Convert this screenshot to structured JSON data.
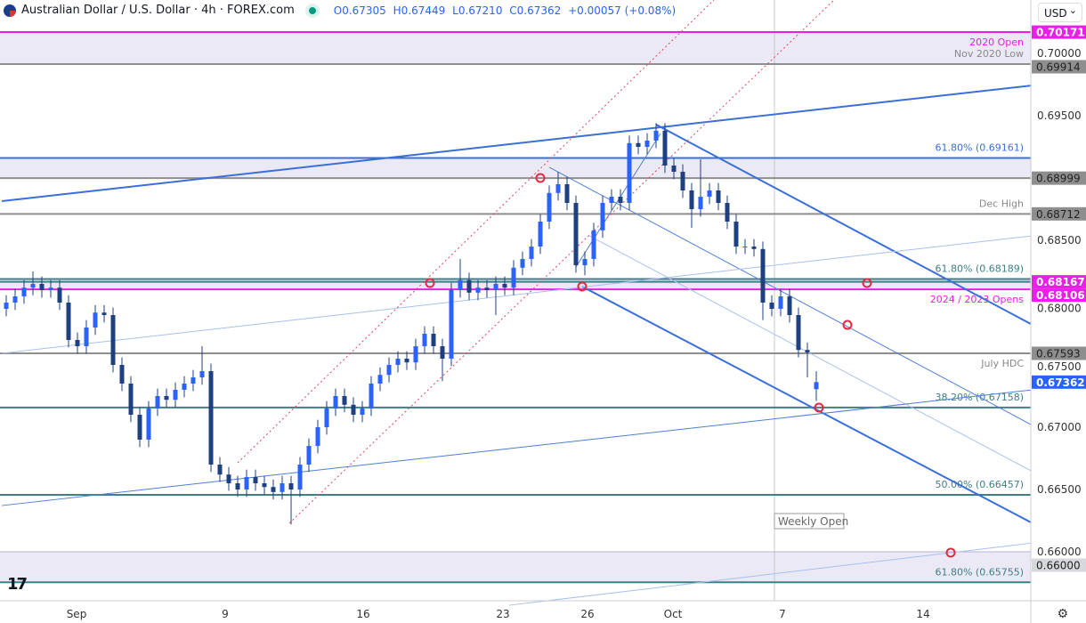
{
  "header": {
    "symbol": "Australian Dollar / U.S. Dollar · 4h · FOREX.com",
    "open": "O0.67305",
    "high": "H0.67449",
    "low": "L0.67210",
    "close": "C0.67362",
    "change": "+0.00057 (+0.08%)"
  },
  "currency_selector": "USD",
  "logo_text": "TV",
  "colors": {
    "up": "#2962ff",
    "down": "#1e3f80",
    "magenta": "#e91ee9",
    "gray": "#8e8e8e",
    "blue": "#3a6fd8",
    "teal": "#3f7f86",
    "band": "#ebe9f6",
    "last": "#2962ff"
  },
  "chart_data": {
    "type": "candlestick",
    "timeframe": "4h",
    "ylim": [
      0.6574,
      0.7039
    ],
    "y_ticks": [
      "0.70000",
      "0.69500",
      "0.68500",
      "0.68000",
      "0.67500",
      "0.67000",
      "0.66500",
      "0.66000"
    ],
    "x_ticks": [
      {
        "label": "Sep",
        "bar": 8.4
      },
      {
        "label": "9",
        "bar": 25.1
      },
      {
        "label": "16",
        "bar": 40.6
      },
      {
        "label": "23",
        "bar": 56.3
      },
      {
        "label": "26",
        "bar": 65.8
      },
      {
        "label": "Oct",
        "bar": 75.4
      },
      {
        "label": "7",
        "bar": 87.7
      },
      {
        "label": "14",
        "bar": 103.5
      }
    ],
    "ohlc": [
      [
        0.6795,
        0.6806,
        0.6789,
        0.68
      ],
      [
        0.68,
        0.6811,
        0.6794,
        0.6805
      ],
      [
        0.6805,
        0.6818,
        0.6799,
        0.6812
      ],
      [
        0.6812,
        0.6825,
        0.6806,
        0.6815
      ],
      [
        0.6815,
        0.6821,
        0.6804,
        0.681
      ],
      [
        0.681,
        0.6818,
        0.6804,
        0.6812
      ],
      [
        0.6812,
        0.6818,
        0.6794,
        0.68
      ],
      [
        0.68,
        0.6806,
        0.6764,
        0.677
      ],
      [
        0.677,
        0.6776,
        0.6759,
        0.6765
      ],
      [
        0.6765,
        0.6786,
        0.6759,
        0.678
      ],
      [
        0.678,
        0.6798,
        0.6774,
        0.6792
      ],
      [
        0.6792,
        0.6798,
        0.6784,
        0.679
      ],
      [
        0.679,
        0.6796,
        0.6744,
        0.675
      ],
      [
        0.675,
        0.6756,
        0.6729,
        0.6735
      ],
      [
        0.6735,
        0.6741,
        0.6704,
        0.671
      ],
      [
        0.671,
        0.6716,
        0.6684,
        0.669
      ],
      [
        0.669,
        0.6721,
        0.6684,
        0.6715
      ],
      [
        0.6715,
        0.6731,
        0.6709,
        0.6725
      ],
      [
        0.6725,
        0.6731,
        0.6716,
        0.6722
      ],
      [
        0.6722,
        0.6736,
        0.6716,
        0.673
      ],
      [
        0.673,
        0.6741,
        0.6724,
        0.6735
      ],
      [
        0.6735,
        0.6746,
        0.6729,
        0.674
      ],
      [
        0.674,
        0.6765,
        0.6734,
        0.6745
      ],
      [
        0.6745,
        0.6751,
        0.6664,
        0.667
      ],
      [
        0.667,
        0.6676,
        0.6656,
        0.6662
      ],
      [
        0.6662,
        0.6668,
        0.6649,
        0.6655
      ],
      [
        0.6655,
        0.6661,
        0.6644,
        0.665
      ],
      [
        0.665,
        0.6666,
        0.6644,
        0.666
      ],
      [
        0.666,
        0.6666,
        0.6649,
        0.6655
      ],
      [
        0.6655,
        0.6661,
        0.6646,
        0.6652
      ],
      [
        0.6652,
        0.6658,
        0.6642,
        0.6648
      ],
      [
        0.6648,
        0.6661,
        0.6642,
        0.6655
      ],
      [
        0.6655,
        0.6661,
        0.6622,
        0.665
      ],
      [
        0.665,
        0.6676,
        0.6644,
        0.667
      ],
      [
        0.667,
        0.6691,
        0.6664,
        0.6685
      ],
      [
        0.6685,
        0.6706,
        0.6679,
        0.67
      ],
      [
        0.67,
        0.6721,
        0.6694,
        0.6715
      ],
      [
        0.6715,
        0.6731,
        0.6709,
        0.6725
      ],
      [
        0.6725,
        0.6731,
        0.6712,
        0.6718
      ],
      [
        0.6718,
        0.6724,
        0.6704,
        0.671
      ],
      [
        0.671,
        0.6721,
        0.6704,
        0.6715
      ],
      [
        0.6715,
        0.6741,
        0.6709,
        0.6735
      ],
      [
        0.6735,
        0.6748,
        0.6729,
        0.6742
      ],
      [
        0.6742,
        0.6756,
        0.6736,
        0.675
      ],
      [
        0.675,
        0.6761,
        0.6744,
        0.6755
      ],
      [
        0.6755,
        0.6761,
        0.6746,
        0.6752
      ],
      [
        0.6752,
        0.6771,
        0.6746,
        0.6765
      ],
      [
        0.6765,
        0.6781,
        0.6759,
        0.6775
      ],
      [
        0.6775,
        0.6781,
        0.6759,
        0.6765
      ],
      [
        0.6765,
        0.6771,
        0.6737,
        0.6755
      ],
      [
        0.6755,
        0.6816,
        0.6749,
        0.681
      ],
      [
        0.681,
        0.6835,
        0.6804,
        0.6818
      ],
      [
        0.6818,
        0.6824,
        0.6802,
        0.6808
      ],
      [
        0.6808,
        0.6818,
        0.6802,
        0.6812
      ],
      [
        0.6812,
        0.6818,
        0.6804,
        0.681
      ],
      [
        0.681,
        0.6821,
        0.679,
        0.6815
      ],
      [
        0.6815,
        0.6821,
        0.6806,
        0.6812
      ],
      [
        0.6812,
        0.6834,
        0.6806,
        0.6828
      ],
      [
        0.6828,
        0.6841,
        0.6822,
        0.6835
      ],
      [
        0.6835,
        0.6851,
        0.6829,
        0.6845
      ],
      [
        0.6845,
        0.6871,
        0.6839,
        0.6865
      ],
      [
        0.6865,
        0.6894,
        0.6859,
        0.6888
      ],
      [
        0.6888,
        0.6905,
        0.6882,
        0.6895
      ],
      [
        0.6895,
        0.6901,
        0.6874,
        0.688
      ],
      [
        0.688,
        0.6886,
        0.6824,
        0.683
      ],
      [
        0.683,
        0.6841,
        0.6822,
        0.6835
      ],
      [
        0.6835,
        0.6864,
        0.6829,
        0.6858
      ],
      [
        0.6858,
        0.6886,
        0.6852,
        0.688
      ],
      [
        0.688,
        0.6891,
        0.6874,
        0.6885
      ],
      [
        0.6885,
        0.6891,
        0.6874,
        0.688
      ],
      [
        0.688,
        0.6934,
        0.6874,
        0.6928
      ],
      [
        0.6928,
        0.6934,
        0.6919,
        0.6925
      ],
      [
        0.6925,
        0.6936,
        0.6919,
        0.693
      ],
      [
        0.693,
        0.6944,
        0.6924,
        0.6938
      ],
      [
        0.6938,
        0.6944,
        0.6904,
        0.691
      ],
      [
        0.691,
        0.6916,
        0.6899,
        0.6905
      ],
      [
        0.6905,
        0.6911,
        0.6884,
        0.689
      ],
      [
        0.689,
        0.6896,
        0.686,
        0.6875
      ],
      [
        0.6875,
        0.6915,
        0.6869,
        0.6885
      ],
      [
        0.6885,
        0.6896,
        0.6879,
        0.689
      ],
      [
        0.689,
        0.6896,
        0.6874,
        0.688
      ],
      [
        0.688,
        0.6886,
        0.6859,
        0.6865
      ],
      [
        0.6865,
        0.6871,
        0.6839,
        0.6845
      ],
      [
        0.6845,
        0.6851,
        0.6839,
        0.6845
      ],
      [
        0.6845,
        0.6851,
        0.6837,
        0.6843
      ],
      [
        0.6843,
        0.6849,
        0.6786,
        0.68
      ],
      [
        0.68,
        0.6806,
        0.6789,
        0.6795
      ],
      [
        0.6795,
        0.6811,
        0.6789,
        0.6805
      ],
      [
        0.6805,
        0.6811,
        0.6784,
        0.679
      ],
      [
        0.679,
        0.6796,
        0.6756,
        0.6762
      ],
      [
        0.6762,
        0.6768,
        0.674,
        0.676
      ],
      [
        0.67305,
        0.67449,
        0.6721,
        0.67362
      ]
    ],
    "bands": [
      {
        "from": 0.69914,
        "to": 0.70171
      },
      {
        "from": 0.68999,
        "to": 0.69161
      },
      {
        "from": 0.68106,
        "to": 0.68189
      },
      {
        "from": 0.65755,
        "to": 0.66
      }
    ],
    "levels": [
      {
        "price": 0.70171,
        "color": "magenta",
        "label": "2020 Open",
        "tag": "0.70171",
        "tagColor": "#e91ee9"
      },
      {
        "price": 0.69914,
        "color": "gray",
        "label": "Nov 2020 Low",
        "tag": "0.69914",
        "tagColor": "#8e8e8e"
      },
      {
        "price": 0.69161,
        "color": "blue",
        "label": "61.80% (0.69161)",
        "tag": ""
      },
      {
        "price": 0.68999,
        "color": "gray",
        "label": "",
        "tag": "0.68999",
        "tagColor": "#8e8e8e"
      },
      {
        "price": 0.68712,
        "color": "gray",
        "label": "Dec High",
        "tag": "0.68712",
        "tagColor": "#8e8e8e"
      },
      {
        "price": 0.68189,
        "color": "teal",
        "label": "61.80% (0.68189)",
        "tag": ""
      },
      {
        "price": 0.68167,
        "color": "teal",
        "label": "",
        "tag": "0.68167",
        "tagColor": "#e91ee9"
      },
      {
        "price": 0.68106,
        "color": "magenta",
        "label": "2024 / 2023 Opens",
        "tag": "0.68106",
        "tagColor": "#e91ee9"
      },
      {
        "price": 0.67593,
        "color": "gray",
        "label": "July HDC",
        "tag": "0.67593",
        "tagColor": "#8e8e8e"
      },
      {
        "price": 0.67158,
        "color": "teal",
        "label": "38.20% (0.67158)",
        "tag": ""
      },
      {
        "price": 0.66457,
        "color": "teal",
        "label": "50.00% (0.66457)",
        "tag": ""
      },
      {
        "price": 0.66,
        "color": "band",
        "label": "",
        "tag": "0.66000",
        "tagColor": "#d6d8dc"
      },
      {
        "price": 0.65755,
        "color": "teal",
        "label": "61.80% (0.65755)",
        "tag": ""
      }
    ],
    "last_price": "0.67362",
    "trendlines": [
      {
        "from": [
          0,
          0.68814
        ],
        "to": [
          115.8,
          0.69743
        ],
        "style": "blue-thick"
      },
      {
        "from": [
          73.5,
          0.69429
        ],
        "to": [
          115.8,
          0.67821
        ],
        "style": "blue-thick"
      },
      {
        "from": [
          65.2,
          0.68129
        ],
        "to": [
          115.8,
          0.66229
        ],
        "style": "blue-thick"
      },
      {
        "from": [
          61.5,
          0.69086
        ],
        "to": [
          115.8,
          0.67014
        ],
        "style": "blue-thin"
      },
      {
        "from": [
          66,
          0.68536
        ],
        "to": [
          115.8,
          0.66643
        ],
        "style": "blue-light"
      },
      {
        "from": [
          0,
          0.67593
        ],
        "to": [
          115.8,
          0.68536
        ],
        "style": "blue-light"
      },
      {
        "from": [
          0,
          0.66371
        ],
        "to": [
          115.8,
          0.673
        ],
        "style": "blue-thin"
      },
      {
        "from": [
          57,
          0.65571
        ],
        "to": [
          115.8,
          0.66071
        ],
        "style": "blue-light"
      },
      {
        "from": [
          64.5,
          0.68286
        ],
        "to": [
          74,
          0.69357
        ],
        "style": "blue-thin"
      },
      {
        "from": [
          26.5,
          0.66714
        ],
        "to": [
          80,
          0.70429
        ],
        "style": "red-dotted"
      },
      {
        "from": [
          32.3,
          0.66229
        ],
        "to": [
          93.5,
          0.70429
        ],
        "style": "red-dotted"
      }
    ],
    "markers": [
      [
        60.5,
        0.69
      ],
      [
        48.1,
        0.68157
      ],
      [
        65.2,
        0.68129
      ],
      [
        97.2,
        0.68157
      ],
      [
        95,
        0.67821
      ],
      [
        91.8,
        0.67157
      ],
      [
        106.6,
        0.65993
      ]
    ],
    "weekly_open": {
      "bar": 86.8,
      "label": "Weekly Open"
    }
  }
}
